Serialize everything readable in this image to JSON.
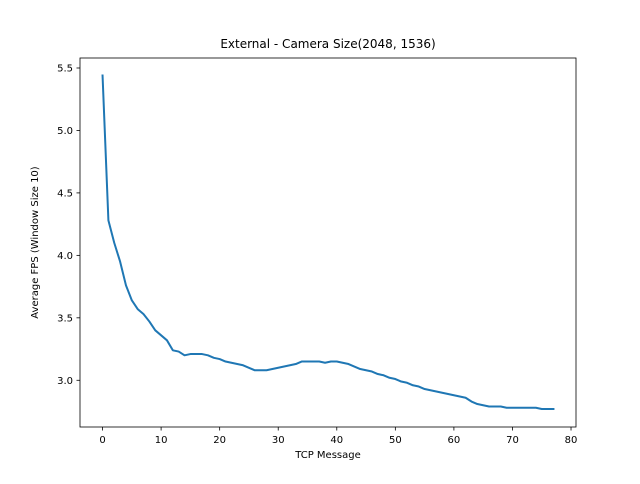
{
  "chart_data": {
    "type": "line",
    "title": "External - Camera Size(2048, 1536)",
    "xlabel": "TCP Message",
    "ylabel": "Average FPS (Window Size 10)",
    "xlim": [
      -3.85,
      80.85
    ],
    "ylim": [
      2.626,
      5.58
    ],
    "xticks": [
      0,
      10,
      20,
      30,
      40,
      50,
      60,
      70,
      80
    ],
    "yticks": [
      3.0,
      3.5,
      4.0,
      4.5,
      5.0,
      5.5
    ],
    "xtick_labels": [
      "0",
      "10",
      "20",
      "30",
      "40",
      "50",
      "60",
      "70",
      "80"
    ],
    "ytick_labels": [
      "3.0",
      "3.5",
      "4.0",
      "4.5",
      "5.0",
      "5.5"
    ],
    "grid": false,
    "line_color": "#1f77b4",
    "series": [
      {
        "x": [
          0,
          1,
          2,
          3,
          4,
          5,
          6,
          7,
          8,
          9,
          10,
          11,
          12,
          13,
          14,
          15,
          16,
          17,
          18,
          19,
          20,
          21,
          22,
          23,
          24,
          25,
          26,
          27,
          28,
          29,
          30,
          31,
          32,
          33,
          34,
          35,
          36,
          37,
          38,
          39,
          40,
          41,
          42,
          43,
          44,
          45,
          46,
          47,
          48,
          49,
          50,
          51,
          52,
          53,
          54,
          55,
          56,
          57,
          58,
          59,
          60,
          61,
          62,
          63,
          64,
          65,
          66,
          67,
          68,
          69,
          70,
          71,
          72,
          73,
          74,
          75,
          76,
          77
        ],
        "values": [
          5.44,
          4.28,
          4.1,
          3.95,
          3.76,
          3.64,
          3.57,
          3.53,
          3.47,
          3.4,
          3.36,
          3.32,
          3.24,
          3.23,
          3.2,
          3.21,
          3.21,
          3.21,
          3.2,
          3.18,
          3.17,
          3.15,
          3.14,
          3.13,
          3.12,
          3.1,
          3.08,
          3.08,
          3.08,
          3.09,
          3.1,
          3.11,
          3.12,
          3.13,
          3.15,
          3.15,
          3.15,
          3.15,
          3.14,
          3.15,
          3.15,
          3.14,
          3.13,
          3.11,
          3.09,
          3.08,
          3.07,
          3.05,
          3.04,
          3.02,
          3.01,
          2.99,
          2.98,
          2.96,
          2.95,
          2.93,
          2.92,
          2.91,
          2.9,
          2.89,
          2.88,
          2.87,
          2.86,
          2.83,
          2.81,
          2.8,
          2.79,
          2.79,
          2.79,
          2.78,
          2.78,
          2.78,
          2.78,
          2.78,
          2.78,
          2.77,
          2.77,
          2.77
        ]
      }
    ]
  }
}
